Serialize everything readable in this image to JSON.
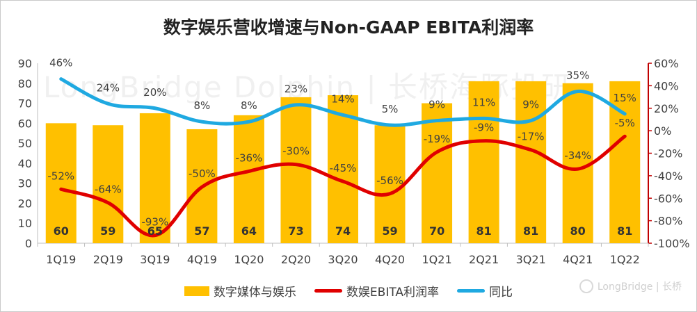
{
  "colors": {
    "bar": "#FFC000",
    "margin_line": "#E00000",
    "growth_line": "#1FA9E1",
    "right_axis": "#C00000"
  },
  "watermark": "LongBridge Dolphin | 长桥海豚投研",
  "brand": {
    "text": "LongBridge | 长桥",
    "icon": "longbridge-logo-icon"
  },
  "chart_data": {
    "type": "bar",
    "title": "数字娱乐营收增速与Non-GAAP EBITA利润率",
    "categories": [
      "1Q19",
      "2Q19",
      "3Q19",
      "4Q19",
      "1Q20",
      "2Q20",
      "3Q20",
      "4Q20",
      "1Q21",
      "2Q21",
      "3Q21",
      "4Q21",
      "1Q22"
    ],
    "series": [
      {
        "name": "数字媒体与娱乐",
        "type": "bar",
        "axis": "left",
        "values": [
          60,
          59,
          65,
          57,
          64,
          73,
          74,
          59,
          70,
          81,
          81,
          80,
          81
        ],
        "labels": [
          "60",
          "59",
          "65",
          "57",
          "64",
          "73",
          "74",
          "59",
          "70",
          "81",
          "81",
          "80",
          "81"
        ]
      },
      {
        "name": "数娱EBITA利润率",
        "type": "line",
        "axis": "right",
        "values": [
          -52,
          -64,
          -93,
          -50,
          -36,
          -30,
          -45,
          -56,
          -19,
          -9,
          -17,
          -34,
          -5
        ],
        "labels": [
          "-52%",
          "-64%",
          "-93%",
          "-50%",
          "-36%",
          "-30%",
          "-45%",
          "-56%",
          "-19%",
          "-9%",
          "-17%",
          "-34%",
          "-5%"
        ]
      },
      {
        "name": "同比",
        "type": "line",
        "axis": "right",
        "values": [
          46,
          24,
          20,
          8,
          8,
          23,
          14,
          5,
          9,
          11,
          9,
          35,
          15
        ],
        "labels": [
          "46%",
          "24%",
          "20%",
          "8%",
          "8%",
          "23%",
          "14%",
          "5%",
          "9%",
          "11%",
          "9%",
          "35%",
          "15%"
        ]
      }
    ],
    "left_axis": {
      "ylim": [
        0,
        90
      ],
      "ticks": [
        "0",
        "10",
        "20",
        "30",
        "40",
        "50",
        "60",
        "70",
        "80",
        "90"
      ]
    },
    "right_axis": {
      "ylim": [
        -100,
        60
      ],
      "ticks": [
        "-100%",
        "-80%",
        "-60%",
        "-40%",
        "-20%",
        "0%",
        "20%",
        "40%",
        "60%"
      ]
    },
    "grid": false,
    "legend": "bottom"
  }
}
